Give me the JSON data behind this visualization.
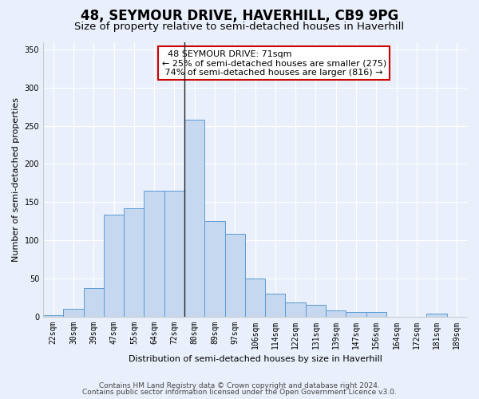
{
  "title": "48, SEYMOUR DRIVE, HAVERHILL, CB9 9PG",
  "subtitle": "Size of property relative to semi-detached houses in Haverhill",
  "xlabel": "Distribution of semi-detached houses by size in Haverhill",
  "ylabel": "Number of semi-detached properties",
  "categories": [
    "22sqm",
    "30sqm",
    "39sqm",
    "47sqm",
    "55sqm",
    "64sqm",
    "72sqm",
    "80sqm",
    "89sqm",
    "97sqm",
    "106sqm",
    "114sqm",
    "122sqm",
    "131sqm",
    "139sqm",
    "147sqm",
    "156sqm",
    "164sqm",
    "172sqm",
    "181sqm",
    "189sqm"
  ],
  "values": [
    2,
    10,
    37,
    133,
    142,
    165,
    165,
    258,
    125,
    108,
    50,
    30,
    18,
    15,
    8,
    6,
    6,
    0,
    0,
    4,
    0
  ],
  "bar_color": "#c5d8f0",
  "bar_edge_color": "#5b9bd5",
  "property_label": "48 SEYMOUR DRIVE: 71sqm",
  "smaller_pct": 25,
  "smaller_count": 275,
  "larger_pct": 74,
  "larger_count": 816,
  "annotation_box_color": "#ffffff",
  "annotation_box_edge": "#cc0000",
  "vline_x": 6.5,
  "ylim": [
    0,
    360
  ],
  "yticks": [
    0,
    50,
    100,
    150,
    200,
    250,
    300,
    350
  ],
  "footer1": "Contains HM Land Registry data © Crown copyright and database right 2024.",
  "footer2": "Contains public sector information licensed under the Open Government Licence v3.0.",
  "bg_color": "#eaf0fb",
  "plot_bg_color": "#eaf0fb",
  "grid_color": "#ffffff",
  "title_fontsize": 12,
  "subtitle_fontsize": 9.5,
  "axis_label_fontsize": 8,
  "tick_fontsize": 7,
  "annotation_fontsize": 8
}
